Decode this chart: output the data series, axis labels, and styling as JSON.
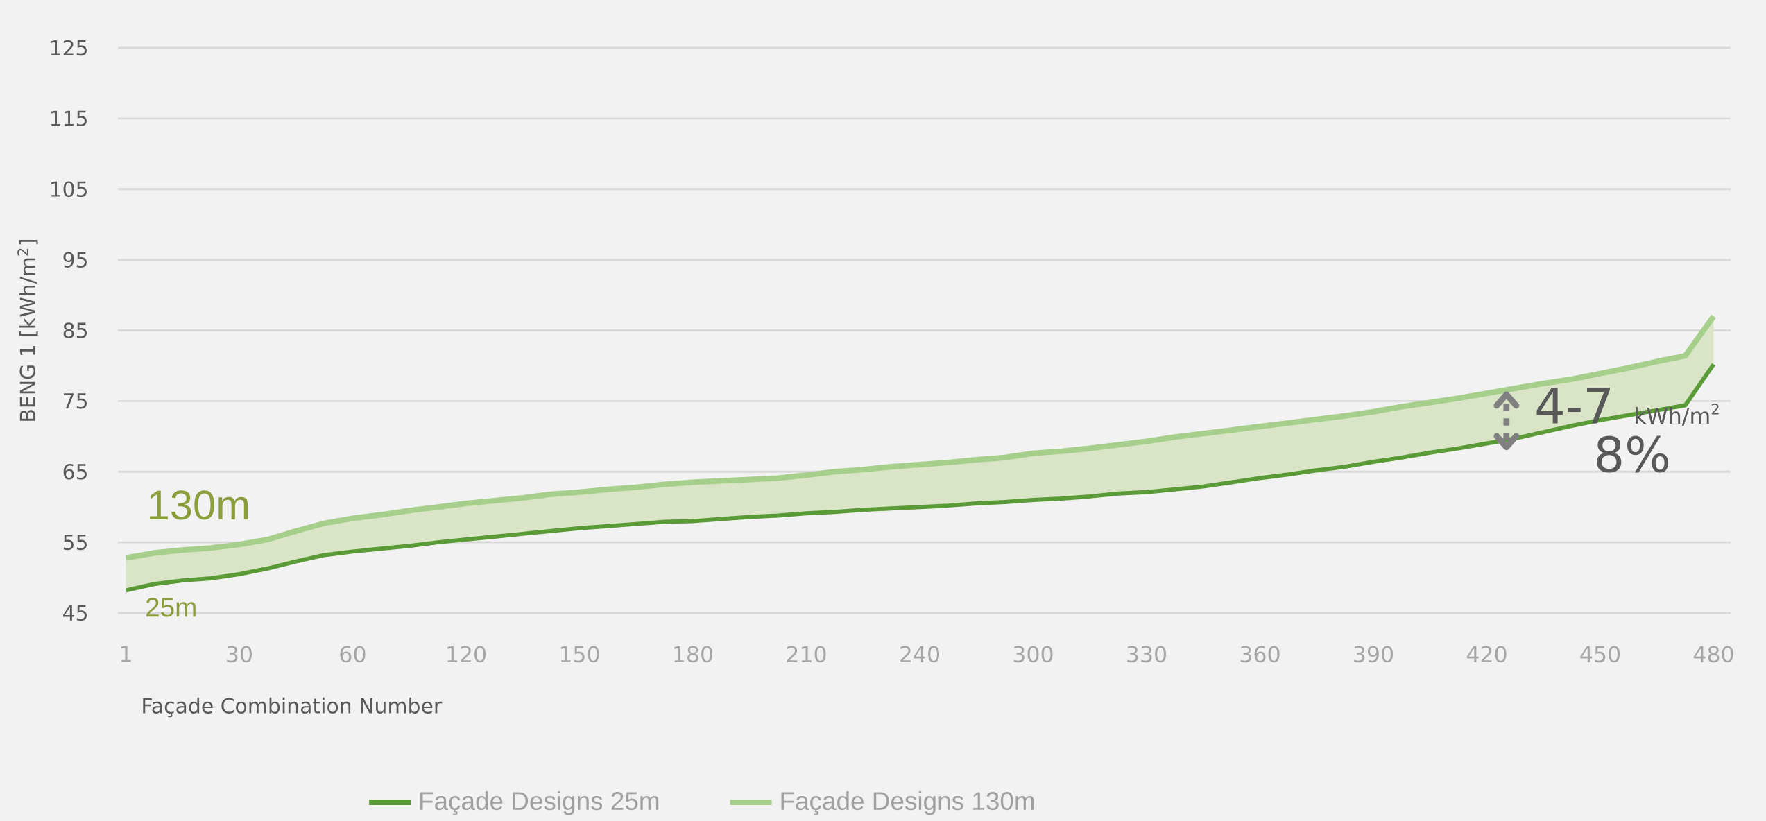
{
  "chart_data": {
    "type": "line",
    "xlabel": "Façade Combination Number",
    "ylabel": "BENG 1 [kWh/m$^{2}$]",
    "categories": [
      "1",
      null,
      null,
      null,
      "30",
      null,
      null,
      null,
      "60",
      null,
      null,
      null,
      "120",
      null,
      null,
      null,
      "150",
      null,
      null,
      null,
      "180",
      null,
      null,
      null,
      "210",
      null,
      null,
      null,
      "240",
      null,
      null,
      null,
      "300",
      null,
      null,
      null,
      "330",
      null,
      null,
      null,
      "360",
      null,
      null,
      null,
      "390",
      null,
      null,
      null,
      "420",
      null,
      null,
      null,
      "450",
      null,
      null,
      null,
      "480"
    ],
    "series": [
      {
        "name": "Façade Designs 25m",
        "color": "#5b9b37",
        "values": [
          48.2,
          49.1,
          49.6,
          49.9,
          50.5,
          51.3,
          52.3,
          53.2,
          53.7,
          54.1,
          54.5,
          55.0,
          55.4,
          55.8,
          56.2,
          56.6,
          57.0,
          57.3,
          57.6,
          57.9,
          58.0,
          58.3,
          58.6,
          58.8,
          59.1,
          59.3,
          59.6,
          59.8,
          60.0,
          60.2,
          60.5,
          60.7,
          61.0,
          61.2,
          61.5,
          61.9,
          62.1,
          62.5,
          62.9,
          63.5,
          64.1,
          64.6,
          65.2,
          65.7,
          66.4,
          67.0,
          67.7,
          68.3,
          69.0,
          69.7,
          70.6,
          71.5,
          72.3,
          73.0,
          73.7,
          74.4,
          80.2
        ]
      },
      {
        "name": "Façade Designs 130m",
        "color": "#a6cf8c",
        "values": [
          52.8,
          53.5,
          53.9,
          54.2,
          54.7,
          55.4,
          56.6,
          57.7,
          58.4,
          58.9,
          59.5,
          60.0,
          60.5,
          60.9,
          61.3,
          61.8,
          62.1,
          62.5,
          62.8,
          63.2,
          63.5,
          63.7,
          63.9,
          64.1,
          64.5,
          65.0,
          65.3,
          65.7,
          66.0,
          66.3,
          66.7,
          67.0,
          67.6,
          67.9,
          68.3,
          68.8,
          69.3,
          69.9,
          70.4,
          70.9,
          71.4,
          71.9,
          72.4,
          72.9,
          73.5,
          74.2,
          74.8,
          75.4,
          76.1,
          76.8,
          77.5,
          78.1,
          78.9,
          79.7,
          80.6,
          81.4,
          87.0
        ],
        "lower": [
          48.2,
          49.1,
          49.6,
          49.9,
          50.5,
          51.3,
          52.3,
          53.2,
          53.7,
          54.1,
          54.5,
          55.0,
          55.4,
          55.8,
          56.2,
          56.6,
          57.0,
          57.3,
          57.6,
          57.9,
          58.0,
          58.3,
          58.6,
          58.8,
          59.1,
          59.3,
          59.6,
          59.8,
          60.0,
          60.2,
          60.5,
          60.7,
          61.0,
          61.2,
          61.5,
          61.9,
          62.1,
          62.5,
          62.9,
          63.5,
          64.1,
          64.6,
          65.2,
          65.7,
          66.4,
          67.0,
          67.7,
          68.3,
          69.0,
          69.7,
          70.6,
          71.5,
          72.3,
          73.0,
          73.7,
          74.4,
          80.2
        ],
        "upper": [
          52.8,
          53.5,
          53.9,
          54.2,
          54.7,
          55.4,
          56.6,
          57.7,
          58.4,
          58.9,
          59.5,
          60.0,
          60.5,
          60.9,
          61.3,
          61.8,
          62.1,
          62.5,
          62.8,
          63.2,
          63.5,
          63.7,
          63.9,
          64.1,
          64.5,
          65.0,
          65.3,
          65.7,
          66.0,
          66.3,
          66.7,
          67.0,
          67.6,
          67.9,
          68.3,
          68.8,
          69.3,
          69.9,
          70.4,
          70.9,
          71.4,
          71.9,
          72.4,
          72.9,
          73.5,
          74.2,
          74.8,
          75.4,
          76.1,
          76.8,
          77.5,
          78.1,
          78.9,
          79.7,
          80.6,
          81.4,
          87.0
        ]
      }
    ],
    "ylim": [
      45,
      125
    ],
    "yticks": [
      45,
      55,
      65,
      75,
      85,
      95,
      105,
      115,
      125
    ],
    "grid": "y",
    "legend": "bottom",
    "annotations": [
      "130m",
      "25m",
      "4-7",
      "kWh/m$^{2}$",
      "8%"
    ]
  }
}
